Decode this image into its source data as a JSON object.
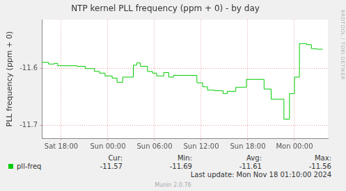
{
  "chart_data": {
    "type": "line",
    "title": "NTP kernel PLL frequency (ppm + 0) - by day",
    "y_label": "PLL frequency (ppm + 0)",
    "x": [
      15.5,
      16.36,
      17.09,
      17.55,
      20.0,
      21.09,
      22.27,
      22.91,
      23.64,
      24.55,
      25.18,
      25.91,
      27.27,
      27.73,
      28.18,
      29.09,
      29.73,
      30.27,
      31.18,
      31.82,
      32.45,
      35.45,
      36.18,
      36.82,
      37.73,
      38.82,
      39.36,
      40.45,
      41.82,
      44.09,
      45.0,
      46.64,
      47.36,
      48.0,
      48.64,
      49.55,
      50.18,
      50.91,
      51.64
    ],
    "series": [
      {
        "name": "pll-freq",
        "color": "#00cc00",
        "values": [
          -11.587,
          -11.589,
          -11.592,
          -11.591,
          -11.595,
          -11.596,
          -11.6,
          -11.605,
          -11.608,
          -11.613,
          -11.617,
          -11.624,
          -11.615,
          -11.594,
          -11.59,
          -11.596,
          -11.605,
          -11.608,
          -11.613,
          -11.607,
          -11.615,
          -11.612,
          -11.625,
          -11.632,
          -11.638,
          -11.639,
          -11.644,
          -11.64,
          -11.633,
          -11.619,
          -11.636,
          -11.654,
          -11.689,
          -11.644,
          -11.615,
          -11.556,
          -11.558,
          -11.565,
          -11.566
        ]
      }
    ],
    "xlim": [
      15.5,
      52.3
    ],
    "xticks": [
      {
        "value": 18,
        "label": "Sat 18:00"
      },
      {
        "value": 24,
        "label": "Sun 00:00"
      },
      {
        "value": 30,
        "label": "Sun 06:00"
      },
      {
        "value": 36,
        "label": "Sun 12:00"
      },
      {
        "value": 42,
        "label": "Sun 18:00"
      },
      {
        "value": 48,
        "label": "Mon 00:00"
      }
    ],
    "ylim": [
      -11.7226,
      -11.514
    ],
    "yticks": [
      -11.6,
      -11.7
    ],
    "grid": true,
    "line_style": "steps",
    "summary": {
      "headers": [
        "Cur:",
        "Min:",
        "Avg:",
        "Max:"
      ],
      "values": [
        -11.57,
        -11.69,
        -11.61,
        -11.56
      ]
    },
    "annotations": [
      "Last update: Mon Nov 18 01:10:00 2024",
      "Munin 2.0.76",
      "RRDTOOL / TOBI OETIKER"
    ]
  }
}
